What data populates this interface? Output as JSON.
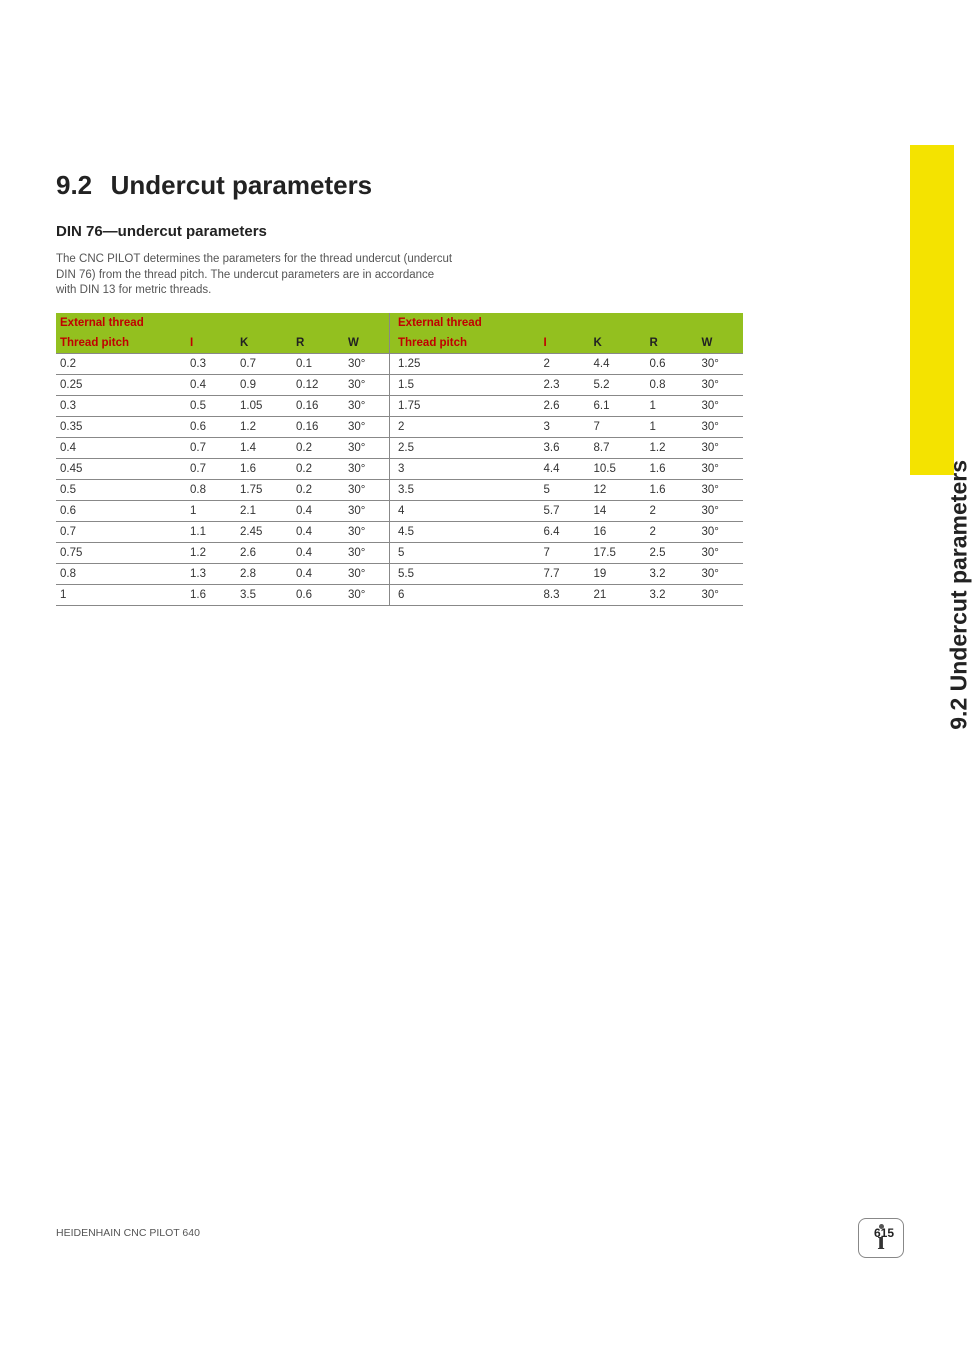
{
  "section_number": "9.2",
  "section_title": "Undercut parameters",
  "subheading": "DIN 76—undercut parameters",
  "intro": "The CNC PILOT determines the parameters for the thread undercut (undercut DIN 76) from the thread pitch. The undercut parameters are in accordance with DIN 13 for metric threads.",
  "side_label": "9.2 Undercut parameters",
  "footer_left": "HEIDENHAIN CNC PILOT 640",
  "page_number": "615",
  "table": {
    "header_main": "External thread",
    "header_cols": [
      "Thread pitch",
      "I",
      "K",
      "R",
      "W"
    ],
    "left_rows": [
      [
        "0.2",
        "0.3",
        "0.7",
        "0.1",
        "30°"
      ],
      [
        "0.25",
        "0.4",
        "0.9",
        "0.12",
        "30°"
      ],
      [
        "0.3",
        "0.5",
        "1.05",
        "0.16",
        "30°"
      ],
      [
        "0.35",
        "0.6",
        "1.2",
        "0.16",
        "30°"
      ],
      [
        "0.4",
        "0.7",
        "1.4",
        "0.2",
        "30°"
      ],
      [
        "0.45",
        "0.7",
        "1.6",
        "0.2",
        "30°"
      ],
      [
        "0.5",
        "0.8",
        "1.75",
        "0.2",
        "30°"
      ],
      [
        "0.6",
        "1",
        "2.1",
        "0.4",
        "30°"
      ],
      [
        "0.7",
        "1.1",
        "2.45",
        "0.4",
        "30°"
      ],
      [
        "0.75",
        "1.2",
        "2.6",
        "0.4",
        "30°"
      ],
      [
        "0.8",
        "1.3",
        "2.8",
        "0.4",
        "30°"
      ],
      [
        "1",
        "1.6",
        "3.5",
        "0.6",
        "30°"
      ]
    ],
    "right_rows": [
      [
        "1.25",
        "2",
        "4.4",
        "0.6",
        "30°"
      ],
      [
        "1.5",
        "2.3",
        "5.2",
        "0.8",
        "30°"
      ],
      [
        "1.75",
        "2.6",
        "6.1",
        "1",
        "30°"
      ],
      [
        "2",
        "3",
        "7",
        "1",
        "30°"
      ],
      [
        "2.5",
        "3.6",
        "8.7",
        "1.2",
        "30°"
      ],
      [
        "3",
        "4.4",
        "10.5",
        "1.6",
        "30°"
      ],
      [
        "3.5",
        "5",
        "12",
        "1.6",
        "30°"
      ],
      [
        "4",
        "5.7",
        "14",
        "2",
        "30°"
      ],
      [
        "4.5",
        "6.4",
        "16",
        "2",
        "30°"
      ],
      [
        "5",
        "7",
        "17.5",
        "2.5",
        "30°"
      ],
      [
        "5.5",
        "7.7",
        "19",
        "3.2",
        "30°"
      ],
      [
        "6",
        "8.3",
        "21",
        "3.2",
        "30°"
      ]
    ]
  },
  "colors": {
    "header_bg": "#93c01f",
    "header_red": "#c00000",
    "side_tab": "#f4e300",
    "text": "#333333",
    "rule": "#888888"
  }
}
